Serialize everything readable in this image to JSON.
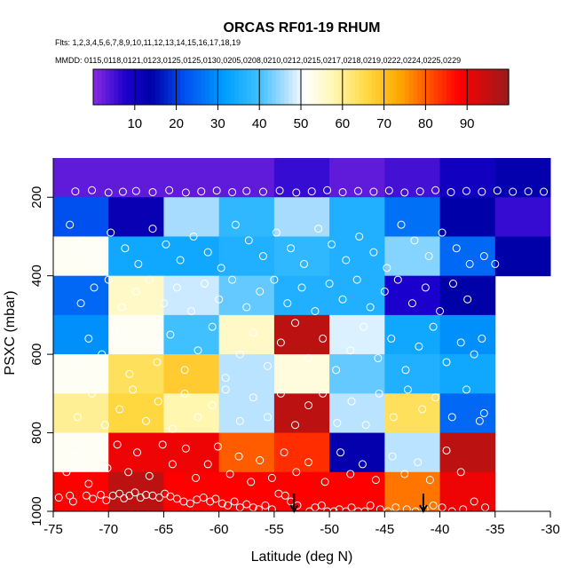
{
  "chart_data": {
    "type": "heatmap",
    "title": "ORCAS RF01-19 RHUM",
    "flights_label": "Flts: 1,2,3,4,5,6,7,8,9,10,11,12,13,14,15,16,17,18,19",
    "dates_label": "MMDD: 0115,0118,0121,0123,0125,0125,0130,0205,0208,0210,0212,0215,0217,0218,0219,0222,0224,0225,0229",
    "xlabel": "Latitude (deg N)",
    "ylabel": "PSXC (mbar)",
    "xlim": [
      -75,
      -30
    ],
    "ylim": [
      1000,
      100
    ],
    "x_ticks": [
      -75,
      -70,
      -65,
      -60,
      -55,
      -50,
      -45,
      -40,
      -35,
      -30
    ],
    "y_ticks": [
      200,
      400,
      600,
      800,
      1000
    ],
    "colorbar": {
      "ticks": [
        10,
        20,
        30,
        40,
        50,
        60,
        70,
        80,
        90
      ],
      "range": [
        0,
        100
      ],
      "stops": [
        {
          "v": 0,
          "c": "#8a2be2"
        },
        {
          "v": 8,
          "c": "#1a00cc"
        },
        {
          "v": 14,
          "c": "#0000a8"
        },
        {
          "v": 22,
          "c": "#0050f0"
        },
        {
          "v": 32,
          "c": "#00a0ff"
        },
        {
          "v": 40,
          "c": "#40c0ff"
        },
        {
          "v": 46,
          "c": "#a8dcff"
        },
        {
          "v": 51,
          "c": "#ffffff"
        },
        {
          "v": 58,
          "c": "#fff7b0"
        },
        {
          "v": 66,
          "c": "#ffd840"
        },
        {
          "v": 74,
          "c": "#ffa500"
        },
        {
          "v": 82,
          "c": "#ff4400"
        },
        {
          "v": 88,
          "c": "#ff0000"
        },
        {
          "v": 100,
          "c": "#9a1a1a"
        }
      ]
    },
    "lat_bins": [
      -75,
      -70,
      -65,
      -60,
      -55,
      -50,
      -45,
      -40,
      -35,
      -30
    ],
    "pressure_bins": [
      100,
      200,
      300,
      400,
      500,
      600,
      700,
      800,
      900,
      1000
    ],
    "cells": [
      [
        3,
        3,
        3,
        3,
        6,
        3,
        5,
        10,
        13,
        null
      ],
      [
        22,
        12,
        46,
        38,
        46,
        36,
        26,
        14,
        6,
        null
      ],
      [
        52,
        34,
        34,
        36,
        38,
        36,
        44,
        25,
        14,
        null
      ],
      [
        25,
        56,
        48,
        42,
        36,
        36,
        8,
        14,
        null,
        null
      ],
      [
        30,
        52,
        40,
        56,
        96,
        49,
        34,
        30,
        null,
        null
      ],
      [
        52,
        64,
        68,
        47,
        54,
        42,
        36,
        34,
        null,
        null
      ],
      [
        60,
        66,
        58,
        47,
        96,
        47,
        64,
        25,
        null,
        null
      ],
      [
        52,
        90,
        90,
        80,
        84,
        13,
        47,
        96,
        null,
        null
      ],
      [
        88,
        96,
        88,
        88,
        88,
        88,
        78,
        90,
        null,
        null
      ]
    ],
    "obs_points": [
      [
        -74.5,
        965
      ],
      [
        -73.5,
        960
      ],
      [
        -73.2,
        975
      ],
      [
        -72.0,
        960
      ],
      [
        -71.4,
        968
      ],
      [
        -70.7,
        958
      ],
      [
        -70.2,
        972
      ],
      [
        -69.6,
        960
      ],
      [
        -69.0,
        955
      ],
      [
        -68.6,
        967
      ],
      [
        -68.1,
        960
      ],
      [
        -67.6,
        952
      ],
      [
        -67.1,
        965
      ],
      [
        -66.6,
        958
      ],
      [
        -66.0,
        960
      ],
      [
        -65.4,
        965
      ],
      [
        -64.9,
        955
      ],
      [
        -64.4,
        962
      ],
      [
        -63.8,
        968
      ],
      [
        -63.2,
        975
      ],
      [
        -62.6,
        980
      ],
      [
        -62.0,
        970
      ],
      [
        -61.4,
        965
      ],
      [
        -60.8,
        975
      ],
      [
        -60.3,
        968
      ],
      [
        -59.7,
        980
      ],
      [
        -59.2,
        985
      ],
      [
        -58.6,
        975
      ],
      [
        -58.1,
        990
      ],
      [
        -57.5,
        982
      ],
      [
        -56.9,
        990
      ],
      [
        -56.4,
        995
      ],
      [
        -55.8,
        985
      ],
      [
        -55.2,
        995
      ],
      [
        -54.6,
        955
      ],
      [
        -54.0,
        960
      ],
      [
        -53.5,
        975
      ],
      [
        -52.9,
        985
      ],
      [
        -51.8,
        1000
      ],
      [
        -51.3,
        990
      ],
      [
        -50.7,
        985
      ],
      [
        -50.2,
        1000
      ],
      [
        -49.6,
        1000
      ],
      [
        -49.1,
        995
      ],
      [
        -48.5,
        1000
      ],
      [
        -48.0,
        990
      ],
      [
        -47.4,
        1000
      ],
      [
        -46.8,
        1000
      ],
      [
        -46.3,
        985
      ],
      [
        -45.4,
        995
      ],
      [
        -44.7,
        1000
      ],
      [
        -44.0,
        990
      ],
      [
        -43.0,
        995
      ],
      [
        -42.2,
        1000
      ],
      [
        -41.4,
        995
      ],
      [
        -40.6,
        985
      ],
      [
        -39.8,
        990
      ],
      [
        -38.9,
        1000
      ],
      [
        -37.9,
        995
      ],
      [
        -36.9,
        975
      ],
      [
        -35.9,
        990
      ],
      [
        -73.8,
        900
      ],
      [
        -73.0,
        860
      ],
      [
        -71.8,
        930
      ],
      [
        -70.1,
        890
      ],
      [
        -69.2,
        830
      ],
      [
        -68.2,
        900
      ],
      [
        -67.4,
        850
      ],
      [
        -66.3,
        910
      ],
      [
        -65.1,
        830
      ],
      [
        -64.2,
        880
      ],
      [
        -63.0,
        840
      ],
      [
        -62.1,
        915
      ],
      [
        -61.0,
        880
      ],
      [
        -60.1,
        835
      ],
      [
        -59.0,
        905
      ],
      [
        -58.2,
        860
      ],
      [
        -57.1,
        925
      ],
      [
        -56.3,
        870
      ],
      [
        -55.2,
        915
      ],
      [
        -54.1,
        850
      ],
      [
        -53.0,
        900
      ],
      [
        -51.9,
        875
      ],
      [
        -50.4,
        925
      ],
      [
        -49.0,
        850
      ],
      [
        -48.1,
        905
      ],
      [
        -47.0,
        880
      ],
      [
        -45.8,
        920
      ],
      [
        -44.3,
        860
      ],
      [
        -43.2,
        905
      ],
      [
        -42.0,
        875
      ],
      [
        -40.9,
        920
      ],
      [
        -39.4,
        845
      ],
      [
        -38.1,
        900
      ],
      [
        -72.8,
        760
      ],
      [
        -71.5,
        700
      ],
      [
        -70.3,
        780
      ],
      [
        -69.0,
        740
      ],
      [
        -67.8,
        690
      ],
      [
        -66.6,
        770
      ],
      [
        -65.5,
        720
      ],
      [
        -64.2,
        790
      ],
      [
        -63.1,
        700
      ],
      [
        -61.9,
        760
      ],
      [
        -60.6,
        730
      ],
      [
        -59.4,
        690
      ],
      [
        -58.1,
        770
      ],
      [
        -56.9,
        710
      ],
      [
        -55.6,
        760
      ],
      [
        -54.4,
        700
      ],
      [
        -53.1,
        780
      ],
      [
        -51.9,
        730
      ],
      [
        -50.6,
        700
      ],
      [
        -49.3,
        775
      ],
      [
        -48.0,
        720
      ],
      [
        -46.7,
        780
      ],
      [
        -45.5,
        700
      ],
      [
        -44.2,
        760
      ],
      [
        -42.9,
        690
      ],
      [
        -41.6,
        740
      ],
      [
        -40.4,
        710
      ],
      [
        -38.9,
        760
      ],
      [
        -37.6,
        690
      ],
      [
        -36.4,
        770
      ],
      [
        -36.0,
        750
      ],
      [
        -73.0,
        620
      ],
      [
        -71.8,
        560
      ],
      [
        -70.6,
        600
      ],
      [
        -69.4,
        540
      ],
      [
        -68.1,
        650
      ],
      [
        -66.9,
        580
      ],
      [
        -65.6,
        620
      ],
      [
        -64.4,
        550
      ],
      [
        -63.1,
        640
      ],
      [
        -61.9,
        590
      ],
      [
        -60.6,
        530
      ],
      [
        -59.4,
        660
      ],
      [
        -58.1,
        600
      ],
      [
        -56.9,
        545
      ],
      [
        -55.6,
        630
      ],
      [
        -54.4,
        570
      ],
      [
        -53.1,
        520
      ],
      [
        -51.9,
        610
      ],
      [
        -50.6,
        560
      ],
      [
        -49.4,
        640
      ],
      [
        -48.1,
        590
      ],
      [
        -46.9,
        530
      ],
      [
        -45.6,
        610
      ],
      [
        -44.4,
        560
      ],
      [
        -43.1,
        640
      ],
      [
        -41.9,
        580
      ],
      [
        -40.6,
        530
      ],
      [
        -39.4,
        620
      ],
      [
        -38.1,
        570
      ],
      [
        -36.9,
        600
      ],
      [
        -36.2,
        560
      ],
      [
        -72.5,
        470
      ],
      [
        -71.3,
        430
      ],
      [
        -70.0,
        410
      ],
      [
        -68.8,
        480
      ],
      [
        -67.5,
        440
      ],
      [
        -66.3,
        410
      ],
      [
        -65.0,
        470
      ],
      [
        -63.8,
        430
      ],
      [
        -62.5,
        490
      ],
      [
        -61.3,
        420
      ],
      [
        -60.0,
        460
      ],
      [
        -58.8,
        410
      ],
      [
        -57.5,
        480
      ],
      [
        -56.3,
        440
      ],
      [
        -55.0,
        410
      ],
      [
        -53.8,
        470
      ],
      [
        -52.5,
        430
      ],
      [
        -51.3,
        490
      ],
      [
        -50.0,
        420
      ],
      [
        -48.8,
        460
      ],
      [
        -47.5,
        410
      ],
      [
        -46.3,
        480
      ],
      [
        -45.0,
        440
      ],
      [
        -43.8,
        410
      ],
      [
        -42.5,
        470
      ],
      [
        -41.3,
        430
      ],
      [
        -40.0,
        490
      ],
      [
        -38.8,
        420
      ],
      [
        -37.5,
        460
      ],
      [
        -73.5,
        270
      ],
      [
        -72.3,
        310
      ],
      [
        -71.0,
        350
      ],
      [
        -69.8,
        290
      ],
      [
        -68.5,
        330
      ],
      [
        -67.3,
        370
      ],
      [
        -66.0,
        280
      ],
      [
        -64.8,
        320
      ],
      [
        -63.5,
        360
      ],
      [
        -62.3,
        300
      ],
      [
        -61.0,
        340
      ],
      [
        -59.8,
        380
      ],
      [
        -58.5,
        270
      ],
      [
        -57.3,
        310
      ],
      [
        -56.0,
        350
      ],
      [
        -54.8,
        290
      ],
      [
        -53.5,
        330
      ],
      [
        -52.3,
        370
      ],
      [
        -51.0,
        280
      ],
      [
        -49.8,
        320
      ],
      [
        -48.5,
        360
      ],
      [
        -47.3,
        300
      ],
      [
        -46.0,
        340
      ],
      [
        -44.8,
        380
      ],
      [
        -43.5,
        270
      ],
      [
        -42.3,
        310
      ],
      [
        -41.0,
        350
      ],
      [
        -39.8,
        290
      ],
      [
        -38.5,
        330
      ],
      [
        -37.3,
        370
      ],
      [
        -36.0,
        350
      ],
      [
        -35.0,
        370
      ],
      [
        -73.0,
        185
      ],
      [
        -71.5,
        182
      ],
      [
        -70.0,
        188
      ],
      [
        -68.7,
        186
      ],
      [
        -67.5,
        184
      ],
      [
        -66.0,
        187
      ],
      [
        -64.5,
        182
      ],
      [
        -63.0,
        188
      ],
      [
        -61.6,
        185
      ],
      [
        -60.2,
        183
      ],
      [
        -58.8,
        187
      ],
      [
        -57.5,
        184
      ],
      [
        -56.0,
        186
      ],
      [
        -54.5,
        183
      ],
      [
        -53.0,
        188
      ],
      [
        -51.6,
        185
      ],
      [
        -50.2,
        182
      ],
      [
        -48.8,
        187
      ],
      [
        -47.4,
        184
      ],
      [
        -46.0,
        186
      ],
      [
        -44.6,
        183
      ],
      [
        -43.2,
        188
      ],
      [
        -41.8,
        185
      ],
      [
        -40.4,
        182
      ],
      [
        -39.0,
        187
      ],
      [
        -37.6,
        184
      ],
      [
        -36.2,
        186
      ],
      [
        -34.8,
        183
      ],
      [
        -33.4,
        186
      ],
      [
        -32.0,
        185
      ],
      [
        -30.6,
        186
      ]
    ],
    "arrows": [
      {
        "lat": -53.2,
        "p_from": 955,
        "p_to": 1000
      },
      {
        "lat": -41.5,
        "p_from": 955,
        "p_to": 1000
      }
    ]
  }
}
